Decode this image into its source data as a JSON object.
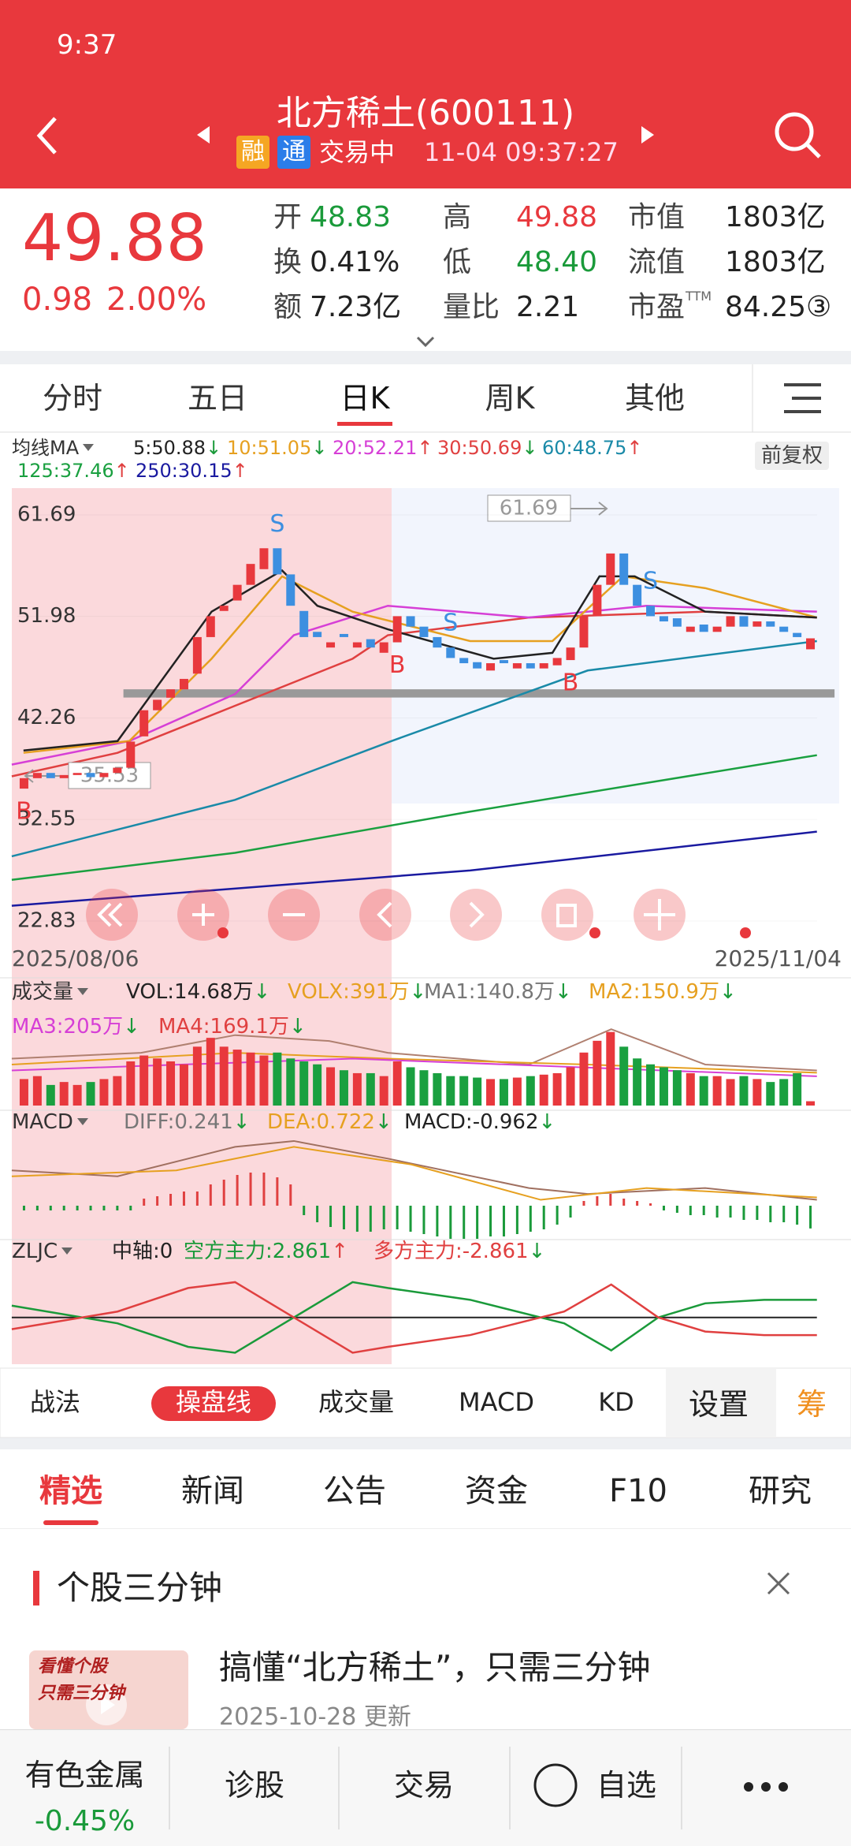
{
  "status": {
    "time": "9:37"
  },
  "header": {
    "title": "北方稀土(600111)",
    "badges": [
      "融",
      "通"
    ],
    "state": "交易中",
    "datetime": "11-04 09:37:27"
  },
  "quote": {
    "price": "49.88",
    "change": "0.98",
    "percent": "2.00%",
    "stats": [
      {
        "label": "开",
        "value": "48.83",
        "color": "#1a9a3a"
      },
      {
        "label": "高",
        "value": "49.88",
        "color": "#e8383d"
      },
      {
        "label": "市值",
        "value": "1803亿",
        "color": "#222"
      },
      {
        "label": "换",
        "value": "0.41%",
        "color": "#222"
      },
      {
        "label": "低",
        "value": "48.40",
        "color": "#1a9a3a"
      },
      {
        "label": "流值",
        "value": "1803亿",
        "color": "#222"
      },
      {
        "label": "额",
        "value": "7.23亿",
        "color": "#222"
      },
      {
        "label": "量比",
        "value": "2.21",
        "color": "#222"
      },
      {
        "label": "市盈",
        "value": "84.25③",
        "color": "#222",
        "sup": "TTM"
      }
    ]
  },
  "tabs": {
    "items": [
      "分时",
      "五日",
      "日K",
      "周K",
      "其他"
    ],
    "active": 2
  },
  "ma_legend": {
    "label": "均线MA",
    "button": "前复权",
    "items": [
      {
        "text": "5:50.88",
        "arrow": "↓",
        "color": "#222"
      },
      {
        "text": "10:51.05",
        "arrow": "↓",
        "color": "#e6a020"
      },
      {
        "text": "20:52.21",
        "arrow": "↑",
        "color": "#d63fd6"
      },
      {
        "text": "30:50.69",
        "arrow": "↓",
        "color": "#e04040"
      },
      {
        "text": "60:48.75",
        "arrow": "↑",
        "color": "#1a8aa8"
      },
      {
        "text": "125:37.46",
        "arrow": "↑",
        "color": "#1aa040"
      },
      {
        "text": "250:30.15",
        "arrow": "↑",
        "color": "#1a1aa0"
      }
    ]
  },
  "chart_data": {
    "type": "candlestick",
    "open": [
      35.5,
      36.5,
      37,
      36.5,
      36.8,
      37,
      36.6,
      37,
      37.5,
      40.5,
      43,
      44.2,
      45,
      46.5,
      50,
      52.5,
      53.5,
      55,
      56.5,
      58.5,
      56,
      52.5,
      50.5,
      49,
      50.3,
      49,
      49.8,
      48.5,
      49.5,
      52,
      51,
      50,
      49,
      48,
      47.6,
      46.8,
      47.8,
      47,
      47.5,
      47,
      47.3,
      47.8,
      49,
      52,
      55,
      58,
      55,
      53,
      52,
      51.8,
      50.5,
      51.2,
      50.5,
      51,
      52,
      51,
      51.5,
      51,
      50.4,
      48.83
    ],
    "close": [
      36.5,
      37,
      36.5,
      36.8,
      37,
      36.6,
      37,
      37.5,
      40,
      43,
      44,
      45,
      46,
      50,
      52,
      53,
      55,
      57,
      58.5,
      56,
      53,
      50,
      50,
      49.5,
      50,
      49.5,
      49,
      49.5,
      52,
      51,
      50,
      49,
      48,
      47.5,
      47,
      47.5,
      47.5,
      47.5,
      47,
      47.5,
      48,
      49,
      52,
      55,
      58,
      55,
      53,
      52,
      51.5,
      51,
      51,
      50.5,
      51,
      52,
      51,
      51.5,
      51,
      50.5,
      50,
      49.88
    ],
    "ylim": [
      22.83,
      61.69
    ],
    "yticks": [
      61.69,
      51.98,
      42.26,
      32.55,
      22.83
    ],
    "x_start": "2025/08/06",
    "x_end": "2025/11/04",
    "high_label": "61.69",
    "low_label": "35.53",
    "signals": [
      {
        "label": "B",
        "index": 0
      },
      {
        "label": "S",
        "index": 19
      },
      {
        "label": "B",
        "index": 28
      },
      {
        "label": "S",
        "index": 32
      },
      {
        "label": "B",
        "index": 41
      },
      {
        "label": "S",
        "index": 47
      }
    ],
    "volume": [
      90,
      100,
      70,
      80,
      70,
      80,
      90,
      100,
      150,
      170,
      160,
      150,
      140,
      200,
      230,
      200,
      190,
      180,
      170,
      180,
      160,
      150,
      140,
      130,
      120,
      110,
      110,
      100,
      150,
      130,
      120,
      110,
      100,
      100,
      95,
      90,
      90,
      95,
      100,
      105,
      110,
      130,
      180,
      220,
      250,
      200,
      160,
      140,
      130,
      120,
      110,
      100,
      100,
      90,
      100,
      90,
      80,
      90,
      110,
      14.68
    ],
    "volume_ylim": [
      0,
      300
    ],
    "macd_hist": [
      -0.2,
      -0.2,
      -0.2,
      -0.2,
      -0.2,
      -0.2,
      -0.2,
      -0.2,
      -0.2,
      0.3,
      0.4,
      0.5,
      0.6,
      0.6,
      0.9,
      1.1,
      1.3,
      1.4,
      1.4,
      1.2,
      0.9,
      -0.4,
      -0.7,
      -0.9,
      -1.0,
      -1.1,
      -1.1,
      -1.0,
      -1.0,
      -1.1,
      -1.2,
      -1.3,
      -1.4,
      -1.4,
      -1.4,
      -1.3,
      -1.3,
      -1.2,
      -1.1,
      -1.0,
      -0.8,
      -0.5,
      0.2,
      0.4,
      0.5,
      0.3,
      0.2,
      0.1,
      -0.2,
      -0.3,
      -0.4,
      -0.4,
      -0.5,
      -0.5,
      -0.6,
      -0.6,
      -0.7,
      -0.7,
      -0.8,
      -0.962
    ]
  },
  "volume_legend": {
    "label": "成交量",
    "items": [
      {
        "text": "VOL:14.68万",
        "arrow": "↓",
        "color": "#222"
      },
      {
        "text": "VOLX:391万",
        "arrow": "↓",
        "color": "#e6a020"
      },
      {
        "text": "MA1:140.8万",
        "arrow": "↓",
        "color": "#777"
      },
      {
        "text": "MA2:150.9万",
        "arrow": "↓",
        "color": "#e6a020"
      },
      {
        "text": "MA3:205万",
        "arrow": "↓",
        "color": "#d63fd6"
      },
      {
        "text": "MA4:169.1万",
        "arrow": "↓",
        "color": "#e04040"
      }
    ]
  },
  "macd_legend": {
    "label": "MACD",
    "items": [
      {
        "text": "DIFF:0.241",
        "arrow": "↓",
        "color": "#777"
      },
      {
        "text": "DEA:0.722",
        "arrow": "↓",
        "color": "#e6a020"
      },
      {
        "text": "MACD:-0.962",
        "arrow": "↓",
        "color": "#222"
      }
    ]
  },
  "zljc_legend": {
    "label": "ZLJC",
    "items": [
      {
        "text": "中轴:0",
        "arrow": "",
        "color": "#222"
      },
      {
        "text": "空方主力:2.861",
        "arrow": "↑",
        "color": "#1a9a3a"
      },
      {
        "text": "多方主力:-2.861",
        "arrow": "↓",
        "color": "#e04040"
      }
    ]
  },
  "toolbar": {
    "items": [
      "战法",
      "操盘线",
      "成交量",
      "MACD",
      "KD",
      "设置",
      "筹"
    ]
  },
  "news_tabs": {
    "items": [
      "精选",
      "新闻",
      "公告",
      "资金",
      "F10",
      "研究"
    ],
    "active": 0
  },
  "section": {
    "title": "个股三分钟"
  },
  "article": {
    "title": "搞懂“北方稀土”，只需三分钟",
    "date": "2025-10-28 更新",
    "thumb_lines": [
      "看懂个股",
      "只需三分钟"
    ]
  },
  "bottom_nav": {
    "sector": "有色金属",
    "sector_change": "-0.45%",
    "items": [
      "诊股",
      "交易",
      "自选"
    ]
  }
}
